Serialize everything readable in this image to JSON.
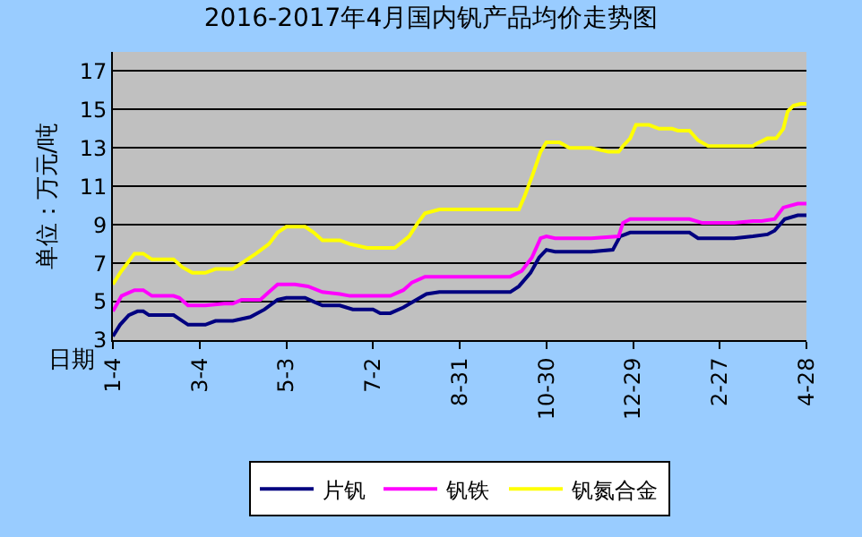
{
  "chart_data": {
    "type": "line",
    "title": "2016-2017年4月国内钒产品均价走势图",
    "ylabel": "单位：万元/吨",
    "xlabel": "日期",
    "xlim": [
      "2016-01-04",
      "2017-04-28"
    ],
    "xticks": [
      {
        "value": "2016-01-04",
        "label": "1-4"
      },
      {
        "value": "2016-03-04",
        "label": "3-4"
      },
      {
        "value": "2016-05-03",
        "label": "5-3"
      },
      {
        "value": "2016-07-02",
        "label": "7-2"
      },
      {
        "value": "2016-08-31",
        "label": "8-31"
      },
      {
        "value": "2016-10-30",
        "label": "10-30"
      },
      {
        "value": "2016-12-29",
        "label": "12-29"
      },
      {
        "value": "2017-02-27",
        "label": "2-27"
      },
      {
        "value": "2017-04-28",
        "label": "4-28"
      }
    ],
    "ylim": [
      3,
      18
    ],
    "yticks": [
      3,
      5,
      7,
      9,
      11,
      13,
      15,
      17
    ],
    "grid": "y",
    "legend": "bottom",
    "line_style": "solid",
    "marker": "none",
    "series": [
      {
        "name": "片钒",
        "color": "#000080",
        "x": [
          "2016-01-04",
          "2016-01-09",
          "2016-01-15",
          "2016-01-21",
          "2016-01-25",
          "2016-01-29",
          "2016-02-15",
          "2016-02-19",
          "2016-02-25",
          "2016-03-08",
          "2016-03-15",
          "2016-03-27",
          "2016-04-08",
          "2016-04-18",
          "2016-04-27",
          "2016-05-03",
          "2016-05-16",
          "2016-05-22",
          "2016-05-28",
          "2016-06-09",
          "2016-06-18",
          "2016-07-02",
          "2016-07-07",
          "2016-07-14",
          "2016-07-23",
          "2016-08-01",
          "2016-08-08",
          "2016-08-17",
          "2016-10-05",
          "2016-10-11",
          "2016-10-19",
          "2016-10-25",
          "2016-10-30",
          "2016-11-05",
          "2016-11-30",
          "2016-12-15",
          "2016-12-20",
          "2016-12-27",
          "2017-02-06",
          "2017-02-12",
          "2017-03-09",
          "2017-03-22",
          "2017-04-01",
          "2017-04-06",
          "2017-04-13",
          "2017-04-22",
          "2017-04-28"
        ],
        "values": [
          3.2,
          3.8,
          4.3,
          4.5,
          4.5,
          4.3,
          4.3,
          4.1,
          3.8,
          3.8,
          4.0,
          4.0,
          4.2,
          4.6,
          5.1,
          5.2,
          5.2,
          5.0,
          4.8,
          4.8,
          4.6,
          4.6,
          4.4,
          4.4,
          4.7,
          5.1,
          5.4,
          5.5,
          5.5,
          5.8,
          6.5,
          7.3,
          7.7,
          7.6,
          7.6,
          7.7,
          8.4,
          8.6,
          8.6,
          8.3,
          8.3,
          8.4,
          8.5,
          8.7,
          9.3,
          9.5,
          9.5
        ]
      },
      {
        "name": "钒铁",
        "color": "#ff00ff",
        "x": [
          "2016-01-04",
          "2016-01-10",
          "2016-01-19",
          "2016-01-25",
          "2016-01-31",
          "2016-02-15",
          "2016-02-19",
          "2016-02-25",
          "2016-03-08",
          "2016-03-21",
          "2016-03-27",
          "2016-04-02",
          "2016-04-15",
          "2016-04-21",
          "2016-04-27",
          "2016-05-09",
          "2016-05-18",
          "2016-05-28",
          "2016-06-09",
          "2016-06-16",
          "2016-07-14",
          "2016-07-23",
          "2016-07-29",
          "2016-08-07",
          "2016-10-05",
          "2016-10-13",
          "2016-10-20",
          "2016-10-26",
          "2016-10-30",
          "2016-11-05",
          "2016-11-30",
          "2016-12-19",
          "2016-12-22",
          "2016-12-27",
          "2017-02-06",
          "2017-02-15",
          "2017-03-09",
          "2017-03-22",
          "2017-03-28",
          "2017-04-06",
          "2017-04-12",
          "2017-04-22",
          "2017-04-28"
        ],
        "values": [
          4.5,
          5.3,
          5.6,
          5.6,
          5.3,
          5.3,
          5.2,
          4.8,
          4.8,
          4.9,
          4.9,
          5.1,
          5.1,
          5.5,
          5.9,
          5.9,
          5.8,
          5.5,
          5.4,
          5.3,
          5.3,
          5.6,
          6.0,
          6.3,
          6.3,
          6.6,
          7.3,
          8.3,
          8.4,
          8.3,
          8.3,
          8.4,
          9.1,
          9.3,
          9.3,
          9.1,
          9.1,
          9.2,
          9.2,
          9.3,
          9.9,
          10.1,
          10.1
        ]
      },
      {
        "name": "钒氮合金",
        "color": "#ffff00",
        "x": [
          "2016-01-04",
          "2016-01-09",
          "2016-01-15",
          "2016-01-19",
          "2016-01-25",
          "2016-01-31",
          "2016-02-15",
          "2016-02-21",
          "2016-02-28",
          "2016-03-08",
          "2016-03-15",
          "2016-03-27",
          "2016-04-02",
          "2016-04-12",
          "2016-04-21",
          "2016-04-27",
          "2016-05-03",
          "2016-05-16",
          "2016-05-22",
          "2016-05-28",
          "2016-06-09",
          "2016-06-16",
          "2016-06-28",
          "2016-07-17",
          "2016-07-27",
          "2016-08-02",
          "2016-08-07",
          "2016-08-17",
          "2016-10-11",
          "2016-10-15",
          "2016-10-20",
          "2016-10-26",
          "2016-10-30",
          "2016-11-08",
          "2016-11-15",
          "2016-11-30",
          "2016-12-12",
          "2016-12-19",
          "2016-12-22",
          "2016-12-27",
          "2016-12-31",
          "2017-01-09",
          "2017-01-16",
          "2017-01-25",
          "2017-01-29",
          "2017-02-06",
          "2017-02-12",
          "2017-02-19",
          "2017-03-22",
          "2017-03-24",
          "2017-04-01",
          "2017-04-07",
          "2017-04-12",
          "2017-04-15",
          "2017-04-19",
          "2017-04-24",
          "2017-04-28"
        ],
        "values": [
          5.9,
          6.5,
          7.1,
          7.5,
          7.5,
          7.2,
          7.2,
          6.8,
          6.5,
          6.5,
          6.7,
          6.7,
          7.0,
          7.5,
          8.0,
          8.6,
          8.9,
          8.9,
          8.6,
          8.2,
          8.2,
          8.0,
          7.8,
          7.8,
          8.4,
          9.1,
          9.6,
          9.8,
          9.8,
          10.5,
          11.5,
          12.8,
          13.3,
          13.3,
          13.0,
          13.0,
          12.8,
          12.8,
          13.1,
          13.5,
          14.2,
          14.2,
          14.0,
          14.0,
          13.9,
          13.9,
          13.4,
          13.1,
          13.1,
          13.2,
          13.5,
          13.5,
          14.0,
          14.9,
          15.2,
          15.3,
          15.3
        ]
      }
    ]
  }
}
